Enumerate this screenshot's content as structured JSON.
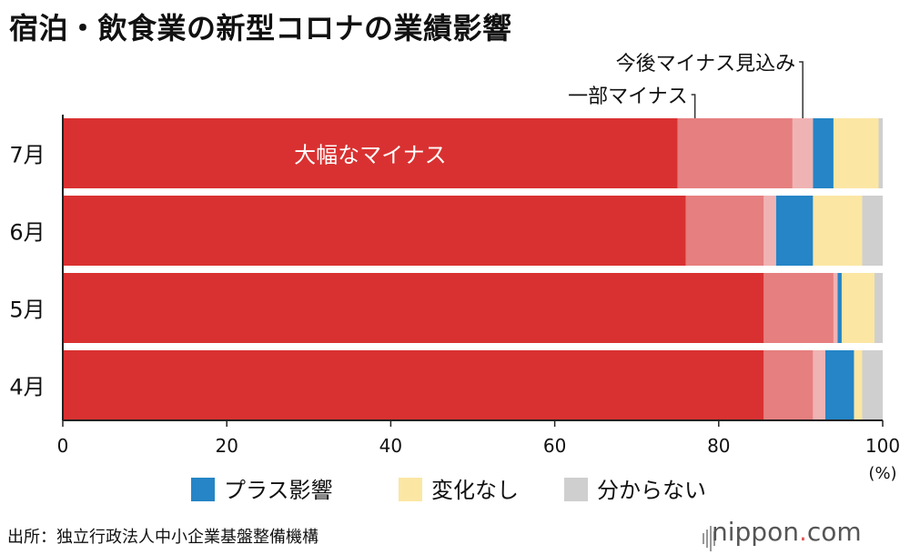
{
  "title": "宿泊・飲食業の新型コロナの業績影響",
  "source": "出所：独立行政法人中小企業基盤整備機構",
  "brand": {
    "name": "nippon",
    "dot": ".",
    "tld": "com"
  },
  "colors": {
    "大幅なマイナス": "#d93131",
    "一部マイナス": "#e67f7f",
    "今後マイナス見込み": "#f0b3b3",
    "プラス影響": "#2585c6",
    "変化なし": "#fbe6a4",
    "分からない": "#cfcfcf"
  },
  "chart_data": {
    "type": "bar",
    "orientation": "horizontal",
    "stacked": true,
    "categories": [
      "7月",
      "6月",
      "5月",
      "4月"
    ],
    "series": [
      {
        "name": "大幅なマイナス",
        "values": [
          75.0,
          76.0,
          85.5,
          85.5
        ]
      },
      {
        "name": "一部マイナス",
        "values": [
          14.0,
          9.5,
          8.5,
          6.0
        ]
      },
      {
        "name": "今後マイナス見込み",
        "values": [
          2.5,
          1.5,
          0.5,
          1.5
        ]
      },
      {
        "name": "プラス影響",
        "values": [
          2.5,
          4.5,
          0.5,
          3.5
        ]
      },
      {
        "name": "変化なし",
        "values": [
          5.5,
          6.0,
          4.0,
          1.0
        ]
      },
      {
        "name": "分からない",
        "values": [
          0.5,
          2.5,
          1.0,
          2.5
        ]
      }
    ],
    "xlim": [
      0,
      100
    ],
    "xticks": [
      "0",
      "20",
      "40",
      "60",
      "80",
      "100"
    ],
    "unit": "(%)",
    "legend": [
      "プラス影響",
      "変化なし",
      "分からない"
    ],
    "annotations": [
      "大幅なマイナス",
      "一部マイナス",
      "今後マイナス見込み"
    ]
  }
}
